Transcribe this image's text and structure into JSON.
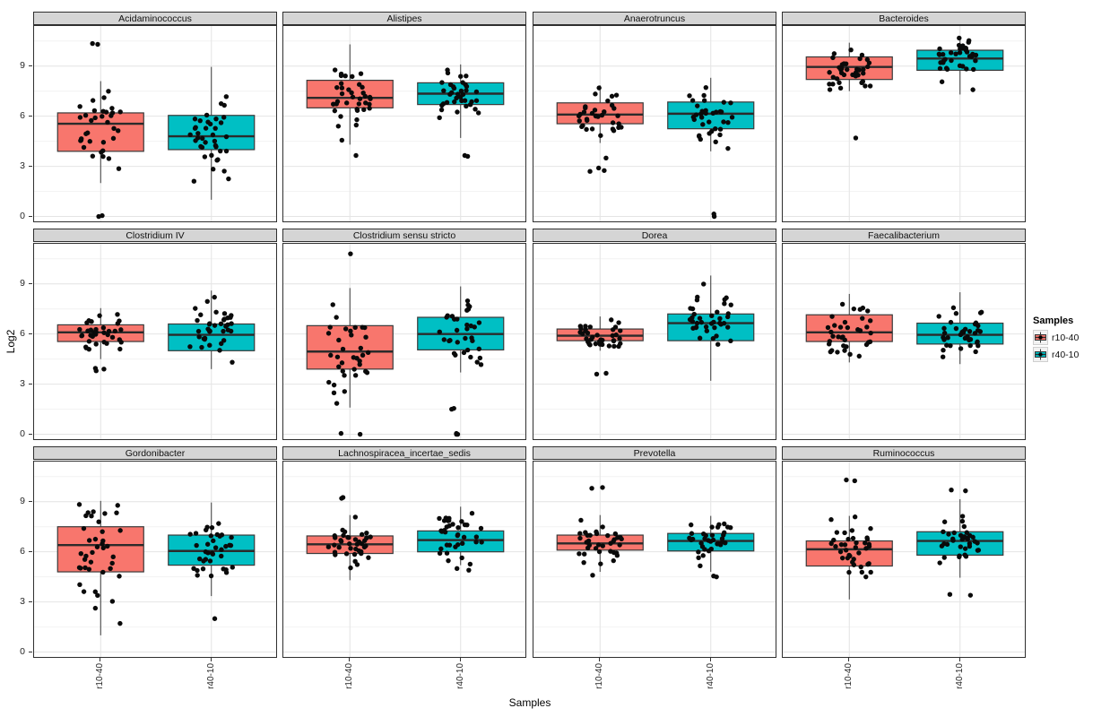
{
  "figure": {
    "y_label": "Log2",
    "x_label": "Samples",
    "y_ticks": [
      0,
      3,
      6,
      9
    ],
    "x_tick_labels": [
      "r10-40",
      "r40-10"
    ]
  },
  "legend": {
    "title": "Samples",
    "entries": [
      {
        "label": "r10-40",
        "color": "#F8766D"
      },
      {
        "label": "r40-10",
        "color": "#00BFC4"
      }
    ]
  },
  "chart_data": {
    "type": "boxplot",
    "facet_rows": 3,
    "facet_cols": 4,
    "x_categories": [
      "r10-40",
      "r40-10"
    ],
    "xlabel": "Samples",
    "ylabel": "Log2",
    "ylim": [
      -0.4,
      11.4
    ],
    "y_ticks": [
      0,
      3,
      6,
      9
    ],
    "y_minor_ticks": [
      1.5,
      4.5,
      7.5,
      10.5
    ],
    "grid": true,
    "legend_position": "right",
    "series_colors": {
      "r10-40": "#F8766D",
      "r40-10": "#00BFC4"
    },
    "panels": [
      {
        "title": "Acidaminococcus",
        "groups": [
          {
            "name": "r10-40",
            "box": {
              "low": 2.0,
              "q1": 3.9,
              "median": 5.55,
              "q3": 6.2,
              "high": 8.1
            },
            "outliers": [
              10.35,
              10.3,
              0.05,
              0.0
            ],
            "n_points": 38
          },
          {
            "name": "r40-10",
            "box": {
              "low": 1.0,
              "q1": 4.0,
              "median": 4.8,
              "q3": 6.05,
              "high": 8.95
            },
            "outliers": [],
            "n_points": 38
          }
        ]
      },
      {
        "title": "Alistipes",
        "groups": [
          {
            "name": "r10-40",
            "box": {
              "low": 4.3,
              "q1": 6.5,
              "median": 7.1,
              "q3": 8.15,
              "high": 10.3
            },
            "outliers": [
              3.65
            ],
            "n_points": 38
          },
          {
            "name": "r40-10",
            "box": {
              "low": 4.7,
              "q1": 6.7,
              "median": 7.35,
              "q3": 8.0,
              "high": 9.1
            },
            "outliers": [
              3.65,
              3.6
            ],
            "n_points": 38
          }
        ]
      },
      {
        "title": "Anaerotruncus",
        "groups": [
          {
            "name": "r10-40",
            "box": {
              "low": 4.4,
              "q1": 5.55,
              "median": 6.1,
              "q3": 6.8,
              "high": 7.85
            },
            "outliers": [
              3.5,
              2.9,
              2.75,
              2.7
            ],
            "n_points": 38
          },
          {
            "name": "r40-10",
            "box": {
              "low": 3.9,
              "q1": 5.25,
              "median": 6.15,
              "q3": 6.85,
              "high": 8.3
            },
            "outliers": [
              0.15,
              0.0
            ],
            "n_points": 38
          }
        ]
      },
      {
        "title": "Bacteroides",
        "groups": [
          {
            "name": "r10-40",
            "box": {
              "low": 7.5,
              "q1": 8.2,
              "median": 8.95,
              "q3": 9.55,
              "high": 10.4
            },
            "outliers": [
              4.7
            ],
            "n_points": 38
          },
          {
            "name": "r40-10",
            "box": {
              "low": 7.3,
              "q1": 8.75,
              "median": 9.45,
              "q3": 9.95,
              "high": 10.75
            },
            "outliers": [],
            "n_points": 38
          }
        ]
      },
      {
        "title": "Clostridium IV",
        "groups": [
          {
            "name": "r10-40",
            "box": {
              "low": 4.5,
              "q1": 5.55,
              "median": 6.1,
              "q3": 6.55,
              "high": 7.55
            },
            "outliers": [
              3.95,
              3.9,
              3.8
            ],
            "n_points": 38
          },
          {
            "name": "r40-10",
            "box": {
              "low": 3.9,
              "q1": 5.0,
              "median": 5.95,
              "q3": 6.6,
              "high": 8.6
            },
            "outliers": [],
            "n_points": 38
          }
        ]
      },
      {
        "title": "Clostridium sensu stricto",
        "groups": [
          {
            "name": "r10-40",
            "box": {
              "low": 1.6,
              "q1": 3.9,
              "median": 4.95,
              "q3": 6.5,
              "high": 8.75
            },
            "outliers": [
              10.8,
              0.05,
              0.0
            ],
            "n_points": 38
          },
          {
            "name": "r40-10",
            "box": {
              "low": 3.7,
              "q1": 5.05,
              "median": 6.0,
              "q3": 7.0,
              "high": 8.85
            },
            "outliers": [
              1.55,
              1.5,
              0.05,
              0.0,
              0.0
            ],
            "n_points": 38
          }
        ]
      },
      {
        "title": "Dorea",
        "groups": [
          {
            "name": "r10-40",
            "box": {
              "low": 5.0,
              "q1": 5.6,
              "median": 5.9,
              "q3": 6.3,
              "high": 7.05
            },
            "outliers": [
              3.65,
              3.6
            ],
            "n_points": 38
          },
          {
            "name": "r40-10",
            "box": {
              "low": 3.2,
              "q1": 5.6,
              "median": 6.65,
              "q3": 7.2,
              "high": 9.5
            },
            "outliers": [],
            "n_points": 38
          }
        ]
      },
      {
        "title": "Faecalibacterium",
        "groups": [
          {
            "name": "r10-40",
            "box": {
              "low": 4.3,
              "q1": 5.55,
              "median": 6.1,
              "q3": 7.15,
              "high": 8.4
            },
            "outliers": [],
            "n_points": 36
          },
          {
            "name": "r40-10",
            "box": {
              "low": 4.2,
              "q1": 5.4,
              "median": 5.95,
              "q3": 6.65,
              "high": 8.5
            },
            "outliers": [],
            "n_points": 38
          }
        ]
      },
      {
        "title": "Gordonibacter",
        "groups": [
          {
            "name": "r10-40",
            "box": {
              "low": 1.0,
              "q1": 4.8,
              "median": 6.4,
              "q3": 7.5,
              "high": 9.05
            },
            "outliers": [],
            "n_points": 40
          },
          {
            "name": "r40-10",
            "box": {
              "low": 3.35,
              "q1": 5.2,
              "median": 6.05,
              "q3": 7.0,
              "high": 8.95
            },
            "outliers": [
              2.0
            ],
            "n_points": 38
          }
        ]
      },
      {
        "title": "Lachnospiracea_incertae_sedis",
        "groups": [
          {
            "name": "r10-40",
            "box": {
              "low": 4.3,
              "q1": 5.9,
              "median": 6.45,
              "q3": 6.95,
              "high": 8.2
            },
            "outliers": [
              9.25,
              9.2
            ],
            "n_points": 40
          },
          {
            "name": "r40-10",
            "box": {
              "low": 5.2,
              "q1": 6.0,
              "median": 6.7,
              "q3": 7.25,
              "high": 8.7
            },
            "outliers": [
              5.0,
              4.9
            ],
            "n_points": 38
          }
        ]
      },
      {
        "title": "Prevotella",
        "groups": [
          {
            "name": "r10-40",
            "box": {
              "low": 4.8,
              "q1": 6.1,
              "median": 6.5,
              "q3": 7.0,
              "high": 8.2
            },
            "outliers": [
              9.85,
              9.8,
              4.6
            ],
            "n_points": 38
          },
          {
            "name": "r40-10",
            "box": {
              "low": 4.8,
              "q1": 6.05,
              "median": 6.65,
              "q3": 7.1,
              "high": 8.15
            },
            "outliers": [
              4.55,
              4.5
            ],
            "n_points": 38
          }
        ]
      },
      {
        "title": "Ruminococcus",
        "groups": [
          {
            "name": "r10-40",
            "box": {
              "low": 3.15,
              "q1": 5.15,
              "median": 6.15,
              "q3": 6.65,
              "high": 8.15
            },
            "outliers": [
              10.3,
              10.25
            ],
            "n_points": 40
          },
          {
            "name": "r40-10",
            "box": {
              "low": 4.45,
              "q1": 5.8,
              "median": 6.65,
              "q3": 7.2,
              "high": 9.15
            },
            "outliers": [
              9.7,
              9.65,
              3.45,
              3.4
            ],
            "n_points": 38
          }
        ]
      }
    ]
  }
}
